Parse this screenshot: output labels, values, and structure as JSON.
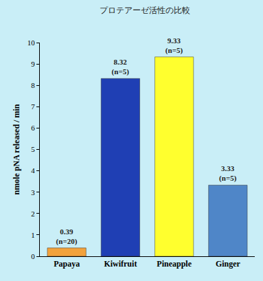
{
  "chart_data": {
    "type": "bar",
    "title": "プロテアーゼ活性の比較",
    "y_label": "nmole pNA released / min",
    "categories": [
      "Papaya",
      "Kiwifruit",
      "Pineapple",
      "Ginger"
    ],
    "values": [
      0.39,
      8.32,
      9.33,
      3.33
    ],
    "value_labels": [
      "0.39\n(n=20)",
      "8.32\n(n=5)",
      "9.33\n(n=5)",
      "3.33\n(n=5)"
    ],
    "colors": [
      "#f2a23c",
      "#1f3fb4",
      "#ffff2e",
      "#4f86c8"
    ],
    "ylim": [
      0,
      10
    ],
    "yticks": [
      0,
      1,
      2,
      3,
      4,
      5,
      6,
      7,
      8,
      9,
      10
    ],
    "grid": false,
    "data_labels": true
  }
}
